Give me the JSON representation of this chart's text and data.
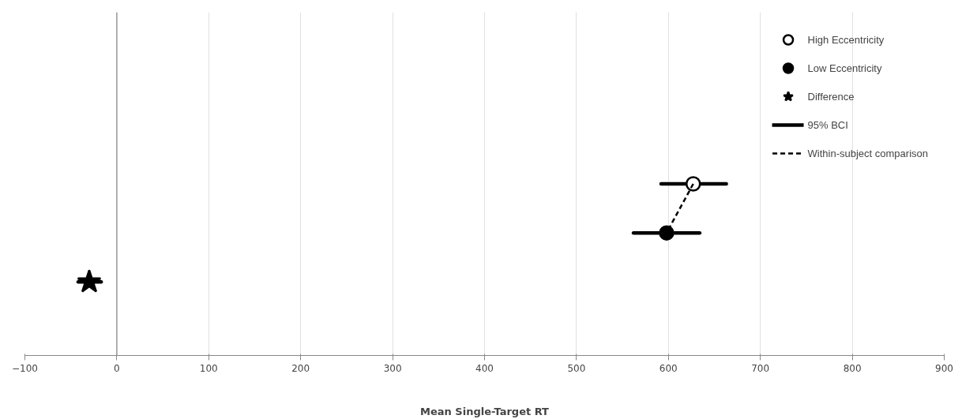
{
  "chart_data": {
    "type": "scatter",
    "orientation": "horizontal",
    "xlabel": "Mean Single-Target RT",
    "categories": [
      null,
      null,
      null,
      null,
      null,
      null,
      null
    ],
    "xlim": [
      -100,
      900
    ],
    "xticks": [
      -100,
      0,
      100,
      200,
      300,
      400,
      500,
      600,
      700,
      800,
      900
    ],
    "grid": "x",
    "legend": "top right",
    "tick_labels": "x",
    "series": [
      {
        "name": "High Eccentricity",
        "color": "#ffffff",
        "marker": "circle",
        "values": [
          null,
          null,
          null,
          627,
          null,
          null,
          null
        ],
        "errors": [
          null,
          null,
          null,
          [
            592,
            663
          ],
          null,
          null,
          null
        ]
      },
      {
        "name": "Low Eccentricity",
        "color": "#000000",
        "marker": "circle",
        "values": [
          null,
          null,
          null,
          null,
          598,
          null,
          null
        ],
        "errors": [
          null,
          null,
          null,
          null,
          [
            562,
            634
          ],
          null,
          null
        ]
      },
      {
        "name": "Difference",
        "color": "#000000",
        "marker": "star",
        "values": [
          null,
          null,
          null,
          null,
          null,
          -30,
          null
        ],
        "errors": [
          null,
          null,
          null,
          null,
          null,
          [
            -42,
            -17
          ],
          null
        ]
      },
      {
        "name": "Within-subject comparison",
        "type": "line",
        "line_style": "dashed",
        "color": "#000000",
        "values": [
          null,
          null,
          null,
          627,
          598,
          null,
          null
        ]
      }
    ],
    "annotations": [
      "95% BCI"
    ],
    "ref_lines": [
      {
        "axis": "x",
        "value": 0,
        "color": "#999999"
      }
    ]
  }
}
